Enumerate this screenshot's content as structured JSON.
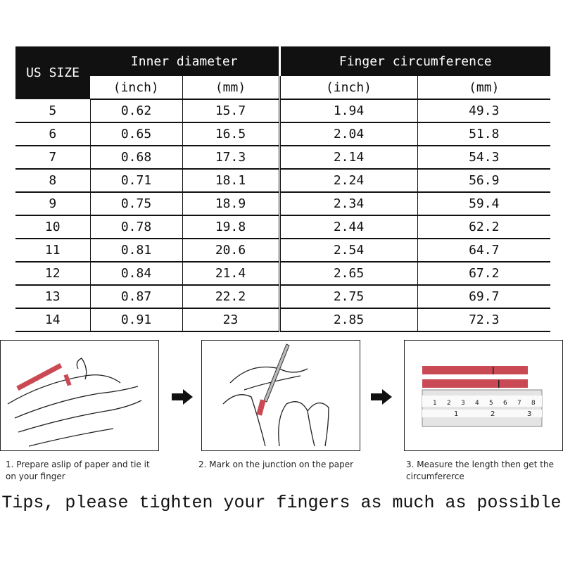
{
  "table": {
    "header": {
      "us_size": "US SIZE",
      "inner_diameter": "Inner diameter",
      "finger_circumference": "Finger circumference",
      "units": [
        "(inch)",
        "(mm)",
        "(inch)",
        "(mm)"
      ]
    },
    "rows": [
      [
        "5",
        "0.62",
        "15.7",
        "1.94",
        "49.3"
      ],
      [
        "6",
        "0.65",
        "16.5",
        "2.04",
        "51.8"
      ],
      [
        "7",
        "0.68",
        "17.3",
        "2.14",
        "54.3"
      ],
      [
        "8",
        "0.71",
        "18.1",
        "2.24",
        "56.9"
      ],
      [
        "9",
        "0.75",
        "18.9",
        "2.34",
        "59.4"
      ],
      [
        "10",
        "0.78",
        "19.8",
        "2.44",
        "62.2"
      ],
      [
        "11",
        "0.81",
        "20.6",
        "2.54",
        "64.7"
      ],
      [
        "12",
        "0.84",
        "21.4",
        "2.65",
        "67.2"
      ],
      [
        "13",
        "0.87",
        "22.2",
        "2.75",
        "69.7"
      ],
      [
        "14",
        "0.91",
        "23",
        "2.85",
        "72.3"
      ]
    ]
  },
  "steps": [
    {
      "caption": "1. Prepare aslip of paper and tie it on your finger",
      "icon": "hand-with-paper-strip-illustration"
    },
    {
      "caption": "2. Mark on the junction on the paper",
      "icon": "hand-marking-paper-illustration"
    },
    {
      "caption": "3. Measure the length then get the circumfererce",
      "icon": "ruler-measuring-strip-illustration"
    }
  ],
  "ruler": {
    "cm_labels": [
      "1",
      "2",
      "3",
      "4",
      "5",
      "6",
      "7",
      "8"
    ],
    "inch_labels": [
      "1",
      "2",
      "3"
    ]
  },
  "tips": "Tips, please tighten your fingers as much as possible",
  "colors": {
    "header_bg": "#111111",
    "paper_strip": "#c94a55"
  }
}
